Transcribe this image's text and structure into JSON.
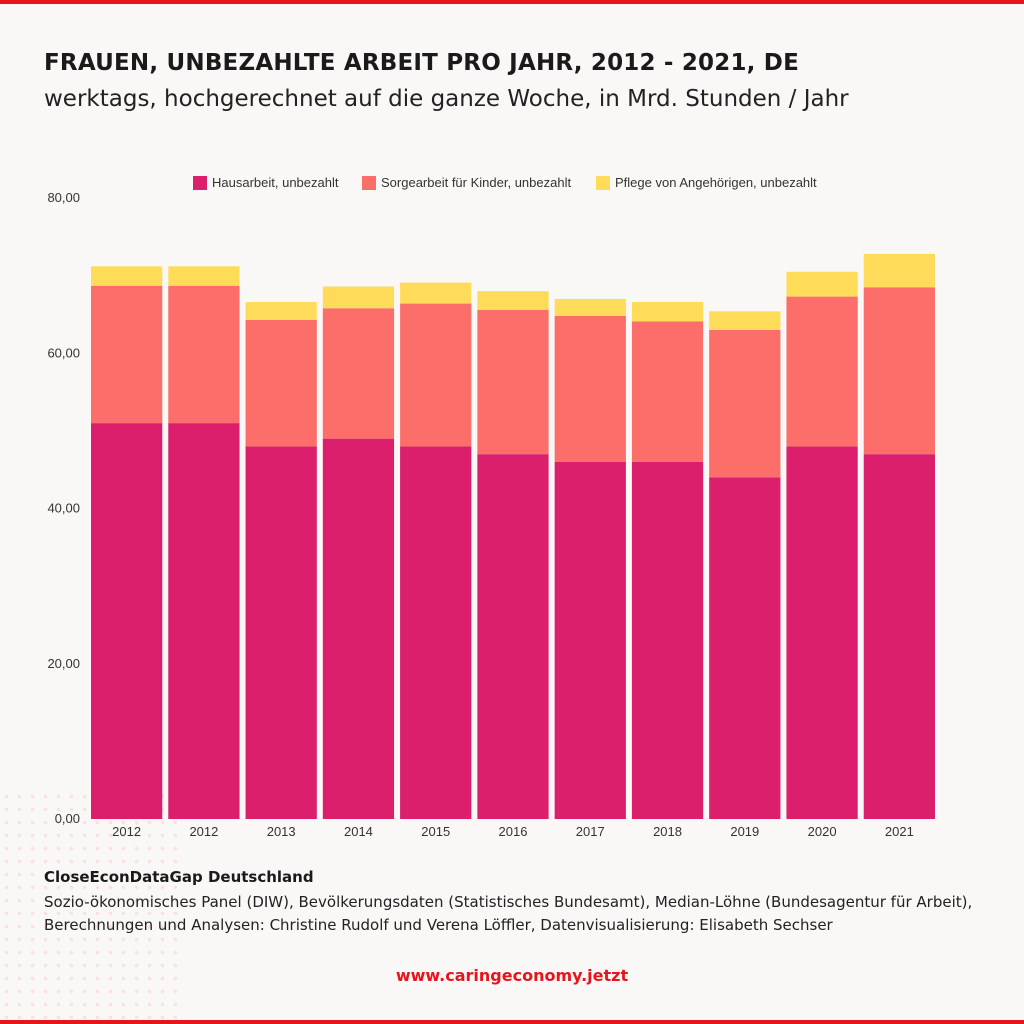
{
  "header": {
    "title": "FRAUEN, UNBEZAHLTE ARBEIT PRO JAHR, 2012 - 2021, DE",
    "subtitle": "werktags, hochgerechnet auf die ganze Woche, in Mrd. Stunden / Jahr"
  },
  "chart_data": {
    "type": "bar",
    "stacked": true,
    "title": "FRAUEN, UNBEZAHLTE ARBEIT PRO JAHR, 2012 - 2021, DE",
    "subtitle": "werktags, hochgerechnet auf die ganze Woche, in Mrd. Stunden / Jahr",
    "xlabel": "",
    "ylabel": "",
    "ylim": [
      0,
      80
    ],
    "yticks": [
      "0,00",
      "20,00",
      "40,00",
      "60,00",
      "80,00"
    ],
    "grid": false,
    "legend_position": "top-center",
    "categories": [
      "2012",
      "2012",
      "2013",
      "2014",
      "2015",
      "2016",
      "2017",
      "2018",
      "2019",
      "2020",
      "2021"
    ],
    "series": [
      {
        "name": "Hausarbeit, unbezahlt",
        "color": "#db1f6c",
        "values": [
          51.0,
          51.0,
          48.0,
          49.0,
          48.0,
          47.0,
          46.0,
          46.0,
          44.0,
          48.0,
          47.0
        ]
      },
      {
        "name": "Sorgearbeit für Kinder, unbezahlt",
        "color": "#fb6e6a",
        "values": [
          17.7,
          17.7,
          16.3,
          16.8,
          18.4,
          18.6,
          18.8,
          18.1,
          19.0,
          19.3,
          21.5
        ]
      },
      {
        "name": "Pflege von Angehörigen, unbezahlt",
        "color": "#fedc5a",
        "values": [
          2.5,
          2.5,
          2.3,
          2.8,
          2.7,
          2.4,
          2.2,
          2.5,
          2.4,
          3.2,
          4.3
        ]
      }
    ]
  },
  "footer": {
    "source_title": "CloseEconDataGap Deutschland",
    "source_text": "Sozio-ökonomisches Panel (DIW), Bevölkerungsdaten (Statistisches Bundesamt), Median-Löhne (Bundesagentur für Arbeit), Berechnungen und Analysen: Christine Rudolf und Verena Löffler, Datenvisualisierung: Elisabeth Sechser",
    "website": "www.caringeconomy.jetzt"
  }
}
